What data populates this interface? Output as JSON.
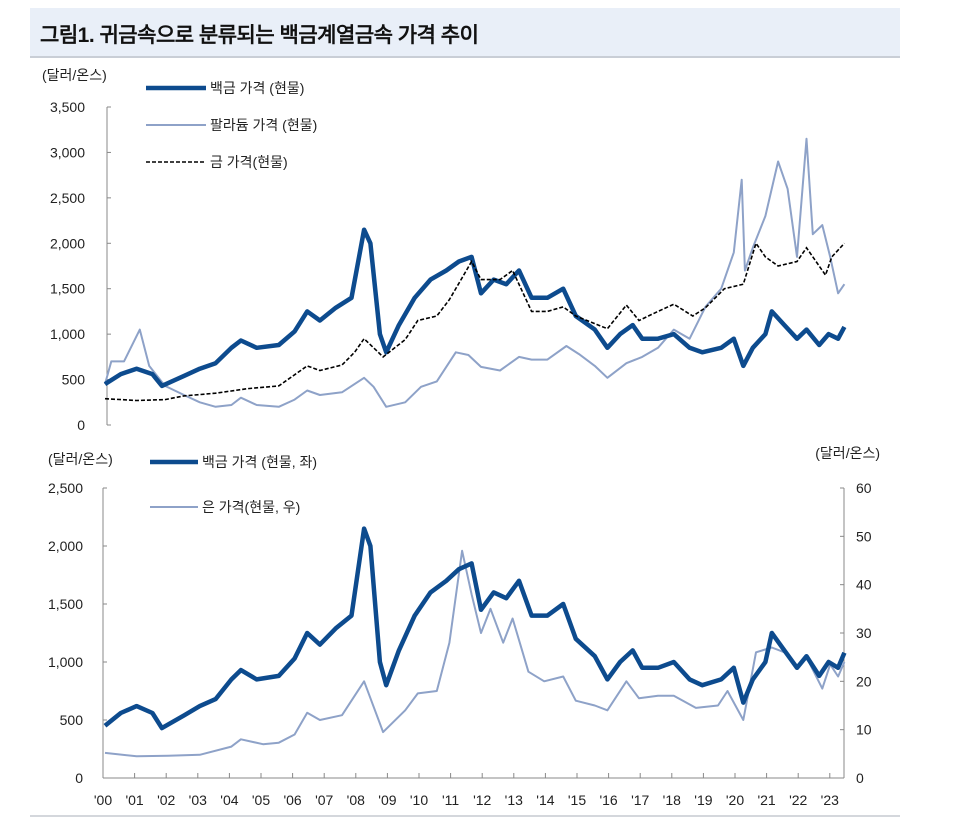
{
  "title": "그림1. 귀금속으로 분류되는 백금계열금속 가격 추이",
  "colors": {
    "platinum": "#0d4b8e",
    "palladium": "#8ea2c8",
    "gold": "#000000",
    "silver": "#8ea2c8"
  },
  "chart_data": [
    {
      "type": "line",
      "ylabel": "(달러/온스)",
      "ylim": [
        0,
        3500
      ],
      "yticks": [
        "0",
        "500",
        "1,000",
        "1,500",
        "2,000",
        "2,500",
        "3,000",
        "3,500"
      ],
      "xlim": [
        2000,
        2023.4
      ],
      "legend_placement": "top-left",
      "series": [
        {
          "name": "백금 가격 (현물)",
          "style": "thick solid",
          "color": "#0d4b8e",
          "x": [
            2000,
            2000.5,
            2001,
            2001.5,
            2001.8,
            2002.5,
            2003,
            2003.5,
            2004,
            2004.3,
            2004.8,
            2005.5,
            2006,
            2006.4,
            2006.8,
            2007.3,
            2007.8,
            2008.2,
            2008.4,
            2008.7,
            2008.9,
            2009.3,
            2009.8,
            2010.3,
            2010.8,
            2011.2,
            2011.6,
            2011.9,
            2012.3,
            2012.7,
            2013.1,
            2013.5,
            2014,
            2014.5,
            2014.9,
            2015.5,
            2015.9,
            2016.3,
            2016.7,
            2017,
            2017.5,
            2018,
            2018.5,
            2018.9,
            2019.5,
            2019.9,
            2020.2,
            2020.5,
            2020.9,
            2021.1,
            2021.5,
            2021.9,
            2022.2,
            2022.6,
            2022.9,
            2023.2,
            2023.4
          ],
          "y": [
            450,
            560,
            620,
            560,
            430,
            540,
            620,
            680,
            850,
            930,
            850,
            880,
            1030,
            1250,
            1150,
            1290,
            1400,
            2150,
            2000,
            1000,
            800,
            1100,
            1400,
            1600,
            1700,
            1800,
            1850,
            1450,
            1600,
            1550,
            1700,
            1400,
            1400,
            1500,
            1200,
            1050,
            850,
            1000,
            1100,
            950,
            950,
            1000,
            850,
            800,
            850,
            950,
            650,
            850,
            1000,
            1250,
            1100,
            950,
            1050,
            880,
            1000,
            950,
            1080
          ]
        },
        {
          "name": "팔라듐 가격 (현물)",
          "style": "thin solid",
          "color": "#8ea2c8",
          "x": [
            2000,
            2000.2,
            2000.6,
            2001.1,
            2001.4,
            2001.9,
            2002.5,
            2003,
            2003.5,
            2004,
            2004.3,
            2004.8,
            2005.5,
            2006,
            2006.4,
            2006.8,
            2007.5,
            2008.2,
            2008.5,
            2008.9,
            2009.5,
            2010,
            2010.5,
            2011.1,
            2011.5,
            2011.9,
            2012.5,
            2013.1,
            2013.5,
            2014,
            2014.6,
            2015,
            2015.5,
            2015.9,
            2016.5,
            2017,
            2017.5,
            2018,
            2018.5,
            2019,
            2019.5,
            2019.9,
            2020.15,
            2020.25,
            2020.5,
            2020.9,
            2021.3,
            2021.6,
            2021.9,
            2022.2,
            2022.4,
            2022.7,
            2022.95,
            2023.2,
            2023.4
          ],
          "y": [
            450,
            700,
            700,
            1050,
            650,
            430,
            330,
            250,
            200,
            220,
            300,
            220,
            200,
            280,
            380,
            330,
            360,
            520,
            420,
            200,
            250,
            420,
            480,
            800,
            770,
            640,
            600,
            750,
            720,
            720,
            870,
            780,
            650,
            520,
            680,
            750,
            850,
            1050,
            950,
            1300,
            1500,
            1900,
            2700,
            1700,
            1950,
            2300,
            2900,
            2600,
            1850,
            3150,
            2100,
            2200,
            1850,
            1450,
            1550
          ]
        },
        {
          "name": "금 가격(현물)",
          "style": "dashed",
          "color": "#000000",
          "x": [
            2000,
            2001,
            2001.9,
            2002.5,
            2003.5,
            2004.5,
            2005.5,
            2006.4,
            2006.8,
            2007.5,
            2007.9,
            2008.2,
            2008.8,
            2009.5,
            2009.9,
            2010.5,
            2010.9,
            2011.6,
            2011.9,
            2012.5,
            2012.9,
            2013.5,
            2014,
            2014.5,
            2014.9,
            2015.9,
            2016.5,
            2016.9,
            2017.5,
            2018,
            2018.6,
            2019,
            2019.6,
            2020.2,
            2020.6,
            2020.9,
            2021.3,
            2021.9,
            2022.2,
            2022.8,
            2023,
            2023.4
          ],
          "y": [
            290,
            270,
            280,
            320,
            350,
            400,
            430,
            650,
            600,
            660,
            800,
            950,
            750,
            940,
            1150,
            1200,
            1380,
            1800,
            1600,
            1600,
            1700,
            1250,
            1250,
            1300,
            1200,
            1060,
            1320,
            1150,
            1250,
            1330,
            1200,
            1290,
            1500,
            1550,
            2000,
            1850,
            1750,
            1800,
            1950,
            1650,
            1850,
            2000
          ]
        }
      ]
    },
    {
      "type": "line",
      "ylabel": "(달러/온스)",
      "ylim": [
        0,
        2500
      ],
      "yticks": [
        "0",
        "500",
        "1,000",
        "1,500",
        "2,000",
        "2,500"
      ],
      "y2label": "(달러/온스)",
      "y2lim": [
        0,
        60
      ],
      "y2ticks": [
        "0",
        "10",
        "20",
        "30",
        "40",
        "50",
        "60"
      ],
      "xlim": [
        2000,
        2023.4
      ],
      "xticks": [
        "'00",
        "'01",
        "'02",
        "'03",
        "'04",
        "'05",
        "'06",
        "'07",
        "'08",
        "'09",
        "'10",
        "'11",
        "'12",
        "'13",
        "'14",
        "'15",
        "'16",
        "'17",
        "'18",
        "'19",
        "'20",
        "'21",
        "'22",
        "'23"
      ],
      "legend_placement": "top-left",
      "series": [
        {
          "name": "백금 가격 (현물, 좌)",
          "axis": "left",
          "style": "thick solid",
          "color": "#0d4b8e",
          "x": [
            2000,
            2000.5,
            2001,
            2001.5,
            2001.8,
            2002.5,
            2003,
            2003.5,
            2004,
            2004.3,
            2004.8,
            2005.5,
            2006,
            2006.4,
            2006.8,
            2007.3,
            2007.8,
            2008.2,
            2008.4,
            2008.7,
            2008.9,
            2009.3,
            2009.8,
            2010.3,
            2010.8,
            2011.2,
            2011.6,
            2011.9,
            2012.3,
            2012.7,
            2013.1,
            2013.5,
            2014,
            2014.5,
            2014.9,
            2015.5,
            2015.9,
            2016.3,
            2016.7,
            2017,
            2017.5,
            2018,
            2018.5,
            2018.9,
            2019.5,
            2019.9,
            2020.2,
            2020.5,
            2020.9,
            2021.1,
            2021.5,
            2021.9,
            2022.2,
            2022.6,
            2022.9,
            2023.2,
            2023.4
          ],
          "y": [
            450,
            560,
            620,
            560,
            430,
            540,
            620,
            680,
            850,
            930,
            850,
            880,
            1030,
            1250,
            1150,
            1290,
            1400,
            2150,
            2000,
            1000,
            800,
            1100,
            1400,
            1600,
            1700,
            1800,
            1850,
            1450,
            1600,
            1550,
            1700,
            1400,
            1400,
            1500,
            1200,
            1050,
            850,
            1000,
            1100,
            950,
            950,
            1000,
            850,
            800,
            850,
            950,
            650,
            850,
            1000,
            1250,
            1100,
            950,
            1050,
            880,
            1000,
            950,
            1080
          ]
        },
        {
          "name": "은 가격(현물, 우)",
          "axis": "right",
          "style": "thin solid",
          "color": "#8ea2c8",
          "x": [
            2000,
            2001,
            2002,
            2003,
            2004,
            2004.3,
            2005,
            2005.5,
            2006,
            2006.4,
            2006.8,
            2007.5,
            2008.2,
            2008.8,
            2009.5,
            2009.9,
            2010.5,
            2010.9,
            2011.3,
            2011.6,
            2011.9,
            2012.2,
            2012.6,
            2012.9,
            2013.4,
            2013.9,
            2014.5,
            2014.9,
            2015.5,
            2015.9,
            2016.5,
            2016.9,
            2017.5,
            2018,
            2018.7,
            2019.4,
            2019.7,
            2020.2,
            2020.6,
            2021.1,
            2021.5,
            2021.9,
            2022.2,
            2022.7,
            2022.95,
            2023.2,
            2023.4
          ],
          "y": [
            5.2,
            4.5,
            4.6,
            4.8,
            6.5,
            8,
            7,
            7.3,
            9,
            13.5,
            12,
            13,
            20,
            9.5,
            14,
            17.5,
            18,
            28,
            47,
            38,
            30,
            35,
            28,
            33,
            22,
            20,
            21,
            16,
            15,
            14,
            20,
            16.5,
            17,
            17,
            14.5,
            15,
            18,
            12,
            26,
            27,
            26,
            23,
            25,
            18.5,
            23.5,
            21,
            24
          ]
        }
      ]
    }
  ]
}
